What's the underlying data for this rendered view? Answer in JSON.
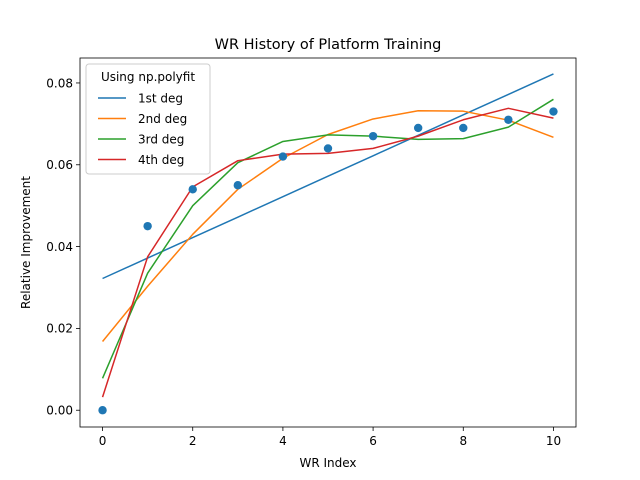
{
  "chart_data": {
    "type": "line",
    "title": "WR History of Platform Training",
    "xlabel": "WR Index",
    "ylabel": "Relative Improvement",
    "xlim": [
      -0.5,
      10.5
    ],
    "ylim": [
      -0.0041,
      0.0861
    ],
    "xticks": [
      0,
      2,
      4,
      6,
      8,
      10
    ],
    "yticks": [
      0.0,
      0.02,
      0.04,
      0.06,
      0.08
    ],
    "ytick_labels": [
      "0.00",
      "0.02",
      "0.04",
      "0.06",
      "0.08"
    ],
    "grid": false,
    "legend": {
      "title": "Using np.polyfit",
      "placement": "top-left"
    },
    "scatter": {
      "color": "#1f77b4",
      "x": [
        0,
        1,
        2,
        3,
        4,
        5,
        6,
        7,
        8,
        9,
        10
      ],
      "y": [
        0.0,
        0.045,
        0.054,
        0.055,
        0.062,
        0.064,
        0.067,
        0.069,
        0.069,
        0.071,
        0.073
      ]
    },
    "x": [
      0,
      1,
      2,
      3,
      4,
      5,
      6,
      7,
      8,
      9,
      10
    ],
    "series": [
      {
        "name": "1st deg",
        "color": "#1f77b4",
        "values": [
          0.0322,
          0.0372,
          0.0422,
          0.0472,
          0.0522,
          0.0572,
          0.0622,
          0.0672,
          0.0722,
          0.0772,
          0.0822
        ]
      },
      {
        "name": "2nd deg",
        "color": "#ff7f0e",
        "values": [
          0.0168,
          0.0303,
          0.043,
          0.054,
          0.0616,
          0.0674,
          0.0712,
          0.0732,
          0.0731,
          0.0709,
          0.0667
        ]
      },
      {
        "name": "3rd deg",
        "color": "#2ca02c",
        "values": [
          0.0078,
          0.0335,
          0.05,
          0.0605,
          0.0657,
          0.0673,
          0.067,
          0.0662,
          0.0664,
          0.0692,
          0.076
        ]
      },
      {
        "name": "4th deg",
        "color": "#d62728",
        "values": [
          0.0032,
          0.0375,
          0.0546,
          0.061,
          0.0626,
          0.0628,
          0.064,
          0.067,
          0.071,
          0.0738,
          0.0714
        ]
      }
    ]
  }
}
